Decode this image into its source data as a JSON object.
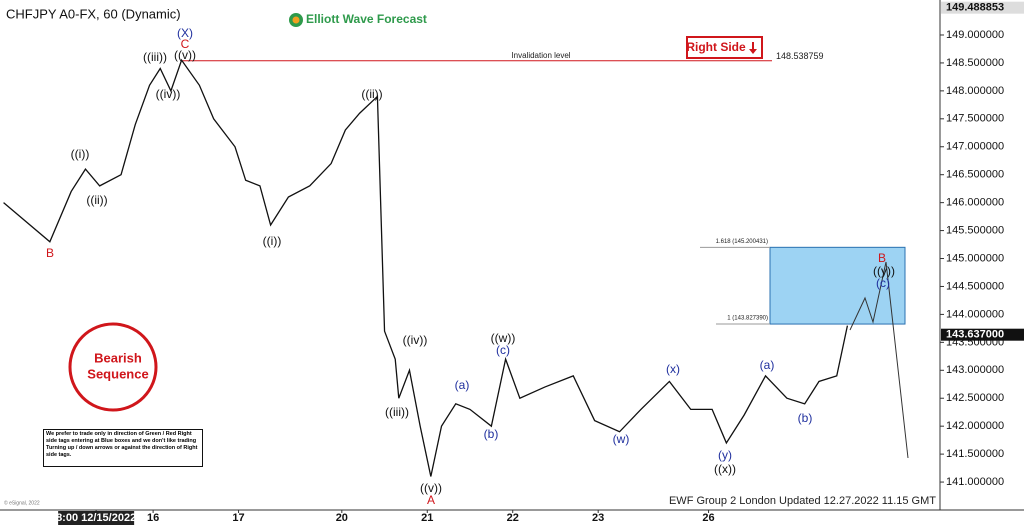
{
  "chart_data": {
    "type": "line",
    "title": "CHFJPY A0-FX, 60 (Dynamic)",
    "brand": "Elliott Wave Forecast",
    "badge": "Right Side",
    "invalidation": {
      "label": "Invalidation level",
      "value": 148.538759
    },
    "target_box": {
      "upper": 145.200431,
      "upper_label": "1.618 (145.200431)",
      "lower": 143.82739,
      "lower_label": "1 (143.827390)"
    },
    "bearish": "Bearish Sequence",
    "disclaimer": "We prefer to trade only in direction of Green / Red Right side tags entering at Blue boxes and we don't like trading Turning up / down arrows or against the direction of Right side tags.",
    "footer": "EWF Group 2 London Updated 12.27.2022 11.15 GMT",
    "copyright": "© eSignal, 2022",
    "wave_labels": [
      "(X)",
      "C",
      "((v))",
      "((iii))",
      "((iv))",
      "((i))",
      "((ii))",
      "B",
      "((ii))",
      "((i))",
      "((iv))",
      "((iii))",
      "((v))",
      "A",
      "(a)",
      "(b)",
      "((w))",
      "(c)",
      "(w)",
      "(x)",
      "(y)",
      "((x))",
      "(a)",
      "(b)",
      "B",
      "((y))",
      "(c)"
    ],
    "price_markers": [
      {
        "value": 149.488853,
        "label": "149.488853"
      },
      {
        "value": 143.637,
        "label": "143.637000"
      }
    ],
    "x": [
      1,
      14,
      20,
      24,
      28,
      34,
      38,
      42,
      45,
      48,
      51,
      56,
      60,
      66,
      69,
      73,
      76,
      81,
      87,
      93,
      97,
      101,
      106,
      108,
      111,
      112,
      115,
      118,
      121,
      124,
      128,
      132,
      138,
      142,
      146,
      153,
      161,
      167,
      174,
      180,
      188,
      194,
      200,
      204,
      209,
      215,
      221,
      226,
      230,
      235,
      238
    ],
    "series": [
      {
        "name": "CHFJPY",
        "color": "#111111",
        "values": [
          146.0,
          145.3,
          146.2,
          146.6,
          146.3,
          146.5,
          147.4,
          148.1,
          148.4,
          148.0,
          148.55,
          148.1,
          147.5,
          147.0,
          146.4,
          146.3,
          145.6,
          146.1,
          146.3,
          146.7,
          147.3,
          147.6,
          147.9,
          143.7,
          143.2,
          142.5,
          143.0,
          142.0,
          141.1,
          142.0,
          142.4,
          142.3,
          142.0,
          143.2,
          142.5,
          142.7,
          142.9,
          142.1,
          141.9,
          142.3,
          142.8,
          142.3,
          142.3,
          141.7,
          142.2,
          142.9,
          142.5,
          142.4,
          142.8,
          142.9,
          143.8
        ]
      }
    ],
    "xlim": [
      0,
      264
    ],
    "xticks": [
      {
        "value": 27,
        "label": "8:00 12/15/2022"
      },
      {
        "value": 43,
        "label": "16"
      },
      {
        "value": 67,
        "label": "17"
      },
      {
        "value": 96,
        "label": "20"
      },
      {
        "value": 120,
        "label": "21"
      },
      {
        "value": 144,
        "label": "22"
      },
      {
        "value": 168,
        "label": "23"
      },
      {
        "value": 199,
        "label": "26"
      }
    ],
    "ylim": [
      140.5,
      149.626
    ],
    "yticks": [
      {
        "value": 141,
        "label": "141.000000"
      },
      {
        "value": 141.5,
        "label": "141.500000"
      },
      {
        "value": 142,
        "label": "142.000000"
      },
      {
        "value": 142.5,
        "label": "142.500000"
      },
      {
        "value": 143,
        "label": "143.000000"
      },
      {
        "value": 143.5,
        "label": "143.500000"
      },
      {
        "value": 144,
        "label": "144.000000"
      },
      {
        "value": 144.5,
        "label": "144.500000"
      },
      {
        "value": 145,
        "label": "145.000000"
      },
      {
        "value": 145.5,
        "label": "145.500000"
      },
      {
        "value": 146,
        "label": "146.000000"
      },
      {
        "value": 146.5,
        "label": "146.500000"
      },
      {
        "value": 147,
        "label": "147.000000"
      },
      {
        "value": 147.5,
        "label": "147.500000"
      },
      {
        "value": 148,
        "label": "148.000000"
      },
      {
        "value": 148.5,
        "label": "148.500000"
      },
      {
        "value": 149,
        "label": "149.000000"
      }
    ]
  }
}
